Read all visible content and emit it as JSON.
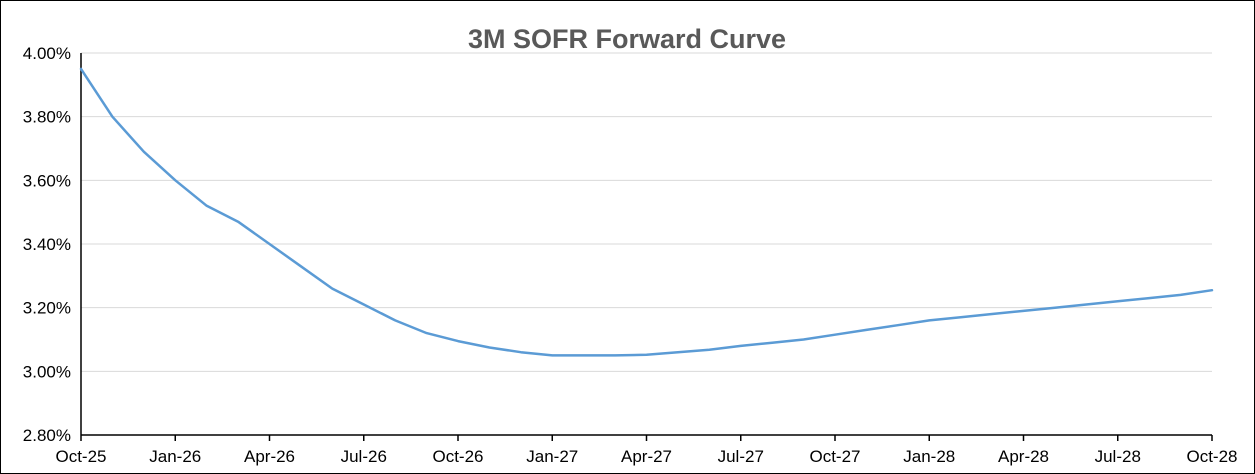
{
  "chart_data": {
    "type": "line",
    "title": "3M SOFR Forward Curve",
    "xlabel": "",
    "ylabel": "",
    "ylim": [
      0.028,
      0.04
    ],
    "yticks": [
      {
        "value": 0.028,
        "label": "2.80%"
      },
      {
        "value": 0.03,
        "label": "3.00%"
      },
      {
        "value": 0.032,
        "label": "3.20%"
      },
      {
        "value": 0.034,
        "label": "3.40%"
      },
      {
        "value": 0.036,
        "label": "3.60%"
      },
      {
        "value": 0.038,
        "label": "3.80%"
      },
      {
        "value": 0.04,
        "label": "4.00%"
      }
    ],
    "xticks": [
      "Oct-25",
      "Jan-26",
      "Apr-26",
      "Jul-26",
      "Oct-26",
      "Jan-27",
      "Apr-27",
      "Jul-27",
      "Oct-27",
      "Jan-28",
      "Apr-28",
      "Jul-28",
      "Oct-28"
    ],
    "x": [
      "Oct-25",
      "Nov-25",
      "Dec-25",
      "Jan-26",
      "Feb-26",
      "Mar-26",
      "Apr-26",
      "May-26",
      "Jun-26",
      "Jul-26",
      "Aug-26",
      "Sep-26",
      "Oct-26",
      "Nov-26",
      "Dec-26",
      "Jan-27",
      "Feb-27",
      "Mar-27",
      "Apr-27",
      "May-27",
      "Jun-27",
      "Jul-27",
      "Aug-27",
      "Sep-27",
      "Oct-27",
      "Nov-27",
      "Dec-27",
      "Jan-28",
      "Feb-28",
      "Mar-28",
      "Apr-28",
      "May-28",
      "Jun-28",
      "Jul-28",
      "Aug-28",
      "Sep-28",
      "Oct-28"
    ],
    "series": [
      {
        "color": "#5b9bd5",
        "values": [
          0.0395,
          0.038,
          0.0369,
          0.036,
          0.0352,
          0.0347,
          0.034,
          0.0333,
          0.0326,
          0.0321,
          0.0316,
          0.0312,
          0.03095,
          0.03075,
          0.0306,
          0.0305,
          0.0305,
          0.0305,
          0.03052,
          0.0306,
          0.03068,
          0.0308,
          0.0309,
          0.031,
          0.03115,
          0.0313,
          0.03145,
          0.0316,
          0.0317,
          0.0318,
          0.0319,
          0.032,
          0.0321,
          0.0322,
          0.0323,
          0.0324,
          0.03255
        ]
      }
    ],
    "grid": true,
    "legend": "none"
  }
}
